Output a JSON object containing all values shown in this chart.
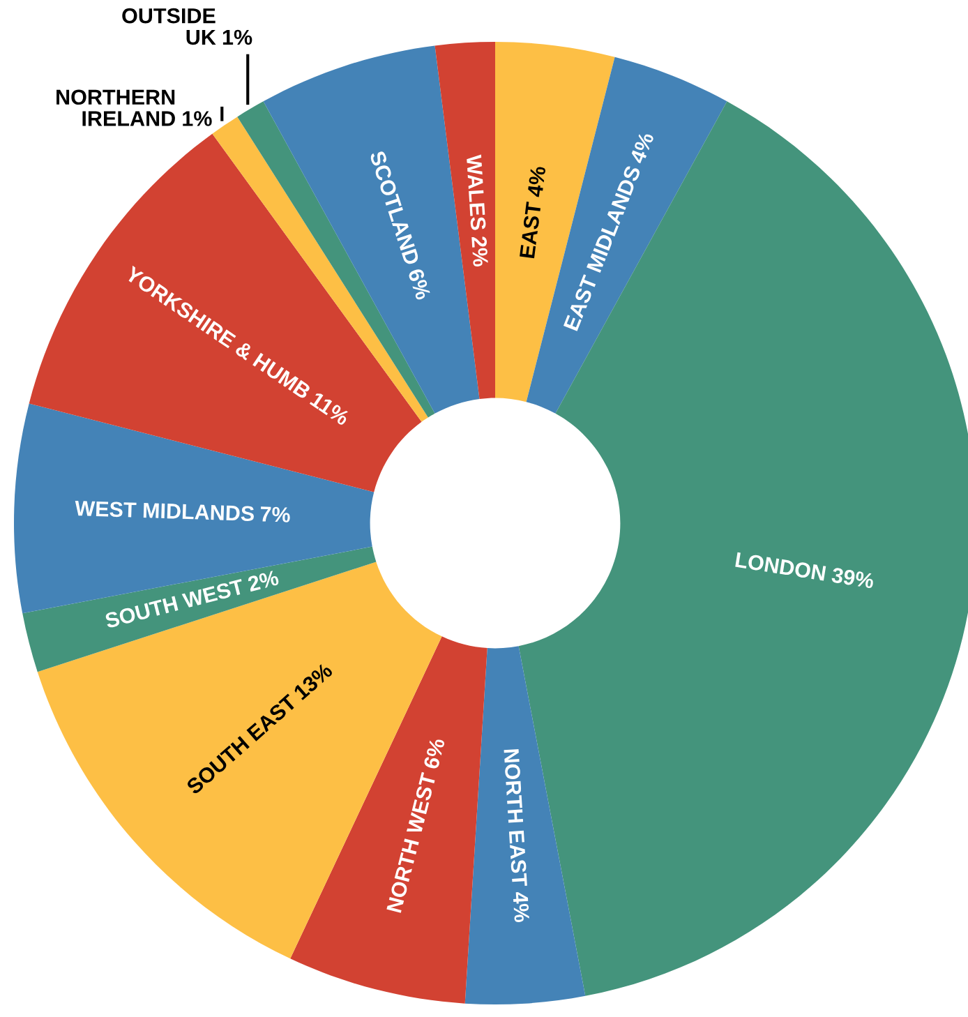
{
  "chart_data": {
    "type": "donut",
    "categories": [
      "EAST",
      "EAST MIDLANDS",
      "LONDON",
      "NORTH EAST",
      "NORTH WEST",
      "SOUTH EAST",
      "SOUTH WEST",
      "WEST MIDLANDS",
      "YORKSHIRE & HUMB",
      "NORTHERN IRELAND",
      "OUTSIDE UK",
      "SCOTLAND",
      "WALES"
    ],
    "values": [
      4,
      4,
      39,
      4,
      6,
      13,
      2,
      7,
      11,
      1,
      1,
      6,
      2
    ],
    "colors": [
      "#fdbf45",
      "#4483b7",
      "#44947c",
      "#4483b7",
      "#d24232",
      "#fdbf45",
      "#44947c",
      "#4483b7",
      "#d24232",
      "#fdbf45",
      "#44947c",
      "#4483b7",
      "#d24232"
    ],
    "value_labels": [
      "4%",
      "4%",
      "39%",
      "4%",
      "6%",
      "13%",
      "2%",
      "7%",
      "11%",
      "1%",
      "1%",
      "6%",
      "2%"
    ]
  }
}
